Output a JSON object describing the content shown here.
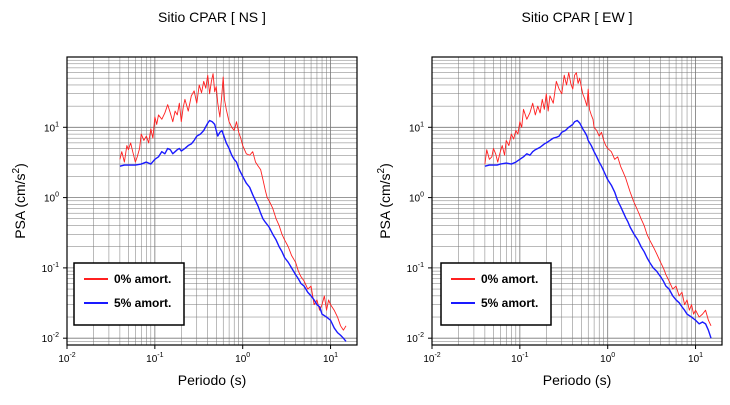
{
  "chart_data": [
    {
      "type": "line",
      "title": "Sitio CPAR [ NS ]",
      "xlabel": "Periodo (s)",
      "ylabel_base": "PSA (cm/s",
      "ylabel_sup": "2",
      "ylabel_end": ")",
      "x_scale": "log",
      "y_scale": "log",
      "xlim": [
        0.01,
        20
      ],
      "ylim": [
        0.008,
        100
      ],
      "grid": true,
      "legend_position": "bottom-left",
      "x_ticks": [
        {
          "value": 0.01,
          "base": "10",
          "exp": "-2"
        },
        {
          "value": 0.1,
          "base": "10",
          "exp": "-1"
        },
        {
          "value": 1,
          "base": "10",
          "exp": "0"
        },
        {
          "value": 10,
          "base": "10",
          "exp": "1"
        }
      ],
      "y_ticks": [
        {
          "value": 0.01,
          "base": "10",
          "exp": "-2"
        },
        {
          "value": 0.1,
          "base": "10",
          "exp": "-1"
        },
        {
          "value": 1,
          "base": "10",
          "exp": "0"
        },
        {
          "value": 10,
          "base": "10",
          "exp": "1"
        }
      ],
      "series": [
        {
          "name": "0% amort.",
          "color": "#ff2020",
          "x": [
            0.04,
            0.042,
            0.045,
            0.048,
            0.05,
            0.053,
            0.056,
            0.06,
            0.063,
            0.067,
            0.07,
            0.075,
            0.08,
            0.085,
            0.09,
            0.095,
            0.1,
            0.105,
            0.11,
            0.12,
            0.13,
            0.14,
            0.15,
            0.16,
            0.17,
            0.18,
            0.19,
            0.2,
            0.21,
            0.22,
            0.24,
            0.26,
            0.28,
            0.3,
            0.32,
            0.34,
            0.36,
            0.38,
            0.4,
            0.42,
            0.44,
            0.46,
            0.48,
            0.5,
            0.52,
            0.55,
            0.58,
            0.6,
            0.62,
            0.65,
            0.68,
            0.7,
            0.75,
            0.8,
            0.85,
            0.9,
            0.95,
            1.0,
            1.1,
            1.2,
            1.3,
            1.4,
            1.5,
            1.6,
            1.7,
            1.8,
            1.9,
            2.0,
            2.2,
            2.4,
            2.6,
            2.8,
            3.0,
            3.3,
            3.6,
            4.0,
            4.3,
            4.6,
            5.0,
            5.5,
            6.0,
            6.5,
            7.0,
            7.5,
            8.0,
            8.5,
            9.0,
            9.5,
            10.0,
            11.0,
            12.0,
            13.0,
            14.0,
            15.0
          ],
          "y": [
            3.5,
            4.5,
            3.2,
            5.5,
            4.8,
            6.0,
            4.5,
            3.2,
            3.8,
            5.0,
            8.0,
            6.5,
            7.5,
            6.0,
            9.5,
            7.0,
            14.0,
            11.0,
            15.0,
            13.0,
            16.0,
            21.0,
            16.0,
            12.0,
            17.0,
            15.0,
            22.0,
            12.0,
            19.0,
            25.0,
            17.0,
            28.0,
            33.0,
            22.0,
            40.0,
            31.0,
            45.0,
            36.0,
            55.0,
            30.0,
            45.0,
            58.0,
            32.0,
            38.0,
            22.0,
            14.0,
            30.0,
            52.0,
            25.0,
            18.0,
            14.0,
            12.0,
            10.0,
            9.0,
            12.0,
            8.5,
            7.0,
            5.5,
            4.2,
            4.0,
            4.5,
            3.2,
            2.8,
            2.5,
            1.8,
            1.3,
            1.0,
            0.9,
            0.7,
            0.5,
            0.4,
            0.3,
            0.25,
            0.2,
            0.15,
            0.12,
            0.09,
            0.075,
            0.065,
            0.05,
            0.055,
            0.03,
            0.035,
            0.025,
            0.03,
            0.04,
            0.025,
            0.035,
            0.03,
            0.025,
            0.02,
            0.015,
            0.013,
            0.015
          ]
        },
        {
          "name": "5% amort.",
          "color": "#1a1aff",
          "x": [
            0.04,
            0.045,
            0.05,
            0.055,
            0.06,
            0.07,
            0.08,
            0.09,
            0.1,
            0.11,
            0.12,
            0.13,
            0.14,
            0.15,
            0.16,
            0.17,
            0.18,
            0.19,
            0.2,
            0.22,
            0.24,
            0.26,
            0.28,
            0.3,
            0.33,
            0.36,
            0.4,
            0.42,
            0.45,
            0.48,
            0.5,
            0.52,
            0.55,
            0.58,
            0.6,
            0.65,
            0.7,
            0.75,
            0.8,
            0.85,
            0.9,
            1.0,
            1.1,
            1.2,
            1.3,
            1.4,
            1.5,
            1.6,
            1.7,
            1.8,
            2.0,
            2.2,
            2.4,
            2.6,
            2.8,
            3.0,
            3.3,
            3.6,
            4.0,
            4.3,
            4.6,
            5.0,
            5.5,
            6.0,
            6.5,
            7.0,
            7.5,
            8.0,
            9.0,
            10.0,
            11.0,
            12.0,
            13.0,
            14.0,
            15.0
          ],
          "y": [
            2.8,
            2.9,
            2.9,
            2.9,
            2.9,
            3.0,
            3.2,
            3.0,
            3.5,
            3.8,
            4.5,
            4.2,
            5.0,
            4.8,
            4.2,
            4.5,
            4.8,
            5.0,
            4.6,
            5.0,
            5.5,
            5.8,
            6.5,
            7.5,
            8.0,
            9.0,
            11.5,
            12.5,
            12.0,
            11.0,
            9.0,
            7.5,
            8.5,
            9.0,
            8.0,
            6.0,
            5.0,
            4.0,
            3.5,
            3.2,
            2.6,
            2.0,
            1.6,
            1.4,
            1.1,
            0.9,
            0.75,
            0.6,
            0.5,
            0.45,
            0.38,
            0.3,
            0.25,
            0.2,
            0.17,
            0.14,
            0.12,
            0.1,
            0.08,
            0.07,
            0.06,
            0.055,
            0.045,
            0.04,
            0.035,
            0.03,
            0.028,
            0.022,
            0.02,
            0.018,
            0.014,
            0.012,
            0.011,
            0.01,
            0.009
          ]
        }
      ]
    },
    {
      "type": "line",
      "title": "Sitio CPAR [ EW ]",
      "xlabel": "Periodo (s)",
      "ylabel_base": "PSA (cm/s",
      "ylabel_sup": "2",
      "ylabel_end": ")",
      "x_scale": "log",
      "y_scale": "log",
      "xlim": [
        0.01,
        20
      ],
      "ylim": [
        0.008,
        100
      ],
      "grid": true,
      "legend_position": "bottom-left",
      "x_ticks": [
        {
          "value": 0.01,
          "base": "10",
          "exp": "-2"
        },
        {
          "value": 0.1,
          "base": "10",
          "exp": "-1"
        },
        {
          "value": 1,
          "base": "10",
          "exp": "0"
        },
        {
          "value": 10,
          "base": "10",
          "exp": "1"
        }
      ],
      "y_ticks": [
        {
          "value": 0.01,
          "base": "10",
          "exp": "-2"
        },
        {
          "value": 0.1,
          "base": "10",
          "exp": "-1"
        },
        {
          "value": 1,
          "base": "10",
          "exp": "0"
        },
        {
          "value": 10,
          "base": "10",
          "exp": "1"
        }
      ],
      "series": [
        {
          "name": "0% amort.",
          "color": "#ff2020",
          "x": [
            0.04,
            0.042,
            0.045,
            0.048,
            0.05,
            0.053,
            0.056,
            0.06,
            0.063,
            0.067,
            0.07,
            0.075,
            0.08,
            0.085,
            0.09,
            0.095,
            0.1,
            0.105,
            0.11,
            0.12,
            0.13,
            0.14,
            0.15,
            0.16,
            0.17,
            0.18,
            0.19,
            0.2,
            0.21,
            0.22,
            0.24,
            0.26,
            0.28,
            0.3,
            0.32,
            0.34,
            0.36,
            0.38,
            0.4,
            0.42,
            0.44,
            0.46,
            0.48,
            0.5,
            0.52,
            0.55,
            0.58,
            0.6,
            0.62,
            0.65,
            0.68,
            0.7,
            0.75,
            0.8,
            0.85,
            0.9,
            0.95,
            1.0,
            1.1,
            1.2,
            1.3,
            1.4,
            1.5,
            1.6,
            1.7,
            1.8,
            1.9,
            2.0,
            2.2,
            2.4,
            2.6,
            2.8,
            3.0,
            3.3,
            3.6,
            4.0,
            4.3,
            4.6,
            5.0,
            5.5,
            6.0,
            6.5,
            7.0,
            7.5,
            8.0,
            8.5,
            9.0,
            9.5,
            10.0,
            11.0,
            12.0,
            13.0,
            14.0,
            15.0
          ],
          "y": [
            3.0,
            4.8,
            3.5,
            3.8,
            5.0,
            4.2,
            3.2,
            4.5,
            5.5,
            4.0,
            6.5,
            5.5,
            8.0,
            6.8,
            9.0,
            8.0,
            12.0,
            10.0,
            18.0,
            13.0,
            16.0,
            22.0,
            15.0,
            20.0,
            16.0,
            25.0,
            18.0,
            30.0,
            17.0,
            28.0,
            22.0,
            45.0,
            35.0,
            30.0,
            55.0,
            40.0,
            60.0,
            42.0,
            35.0,
            55.0,
            60.0,
            42.0,
            50.0,
            38.0,
            30.0,
            25.0,
            20.0,
            35.0,
            18.0,
            15.0,
            13.0,
            10.0,
            9.0,
            7.5,
            8.5,
            6.5,
            5.5,
            5.0,
            4.5,
            3.5,
            3.8,
            2.8,
            2.3,
            1.9,
            1.5,
            1.2,
            1.0,
            0.85,
            0.65,
            0.5,
            0.4,
            0.3,
            0.25,
            0.2,
            0.16,
            0.12,
            0.1,
            0.08,
            0.065,
            0.05,
            0.055,
            0.04,
            0.045,
            0.03,
            0.035,
            0.025,
            0.03,
            0.022,
            0.025,
            0.02,
            0.022,
            0.025,
            0.018,
            0.015
          ]
        },
        {
          "name": "5% amort.",
          "color": "#1a1aff",
          "x": [
            0.04,
            0.045,
            0.05,
            0.055,
            0.06,
            0.07,
            0.08,
            0.09,
            0.1,
            0.11,
            0.12,
            0.13,
            0.14,
            0.15,
            0.16,
            0.17,
            0.18,
            0.19,
            0.2,
            0.22,
            0.24,
            0.26,
            0.28,
            0.3,
            0.33,
            0.36,
            0.4,
            0.42,
            0.45,
            0.48,
            0.5,
            0.52,
            0.55,
            0.58,
            0.6,
            0.65,
            0.7,
            0.75,
            0.8,
            0.85,
            0.9,
            1.0,
            1.1,
            1.2,
            1.3,
            1.4,
            1.5,
            1.6,
            1.7,
            1.8,
            2.0,
            2.2,
            2.4,
            2.6,
            2.8,
            3.0,
            3.3,
            3.6,
            4.0,
            4.3,
            4.6,
            5.0,
            5.5,
            6.0,
            6.5,
            7.0,
            7.5,
            8.0,
            9.0,
            10.0,
            11.0,
            12.0,
            13.0,
            14.0,
            15.0
          ],
          "y": [
            2.8,
            2.9,
            2.9,
            2.9,
            3.0,
            3.1,
            3.0,
            3.2,
            3.5,
            3.8,
            4.2,
            4.0,
            4.5,
            4.8,
            5.0,
            5.2,
            5.5,
            5.8,
            6.0,
            6.5,
            7.0,
            7.2,
            7.5,
            8.5,
            9.0,
            10.0,
            11.0,
            12.0,
            12.5,
            11.5,
            10.5,
            9.5,
            8.5,
            7.5,
            6.5,
            5.5,
            4.5,
            3.8,
            3.2,
            2.8,
            2.4,
            1.8,
            1.5,
            1.2,
            0.9,
            0.75,
            0.62,
            0.52,
            0.45,
            0.38,
            0.3,
            0.25,
            0.2,
            0.17,
            0.14,
            0.12,
            0.1,
            0.09,
            0.075,
            0.065,
            0.055,
            0.05,
            0.04,
            0.035,
            0.032,
            0.028,
            0.025,
            0.022,
            0.02,
            0.018,
            0.016,
            0.017,
            0.016,
            0.013,
            0.01
          ]
        }
      ]
    }
  ]
}
